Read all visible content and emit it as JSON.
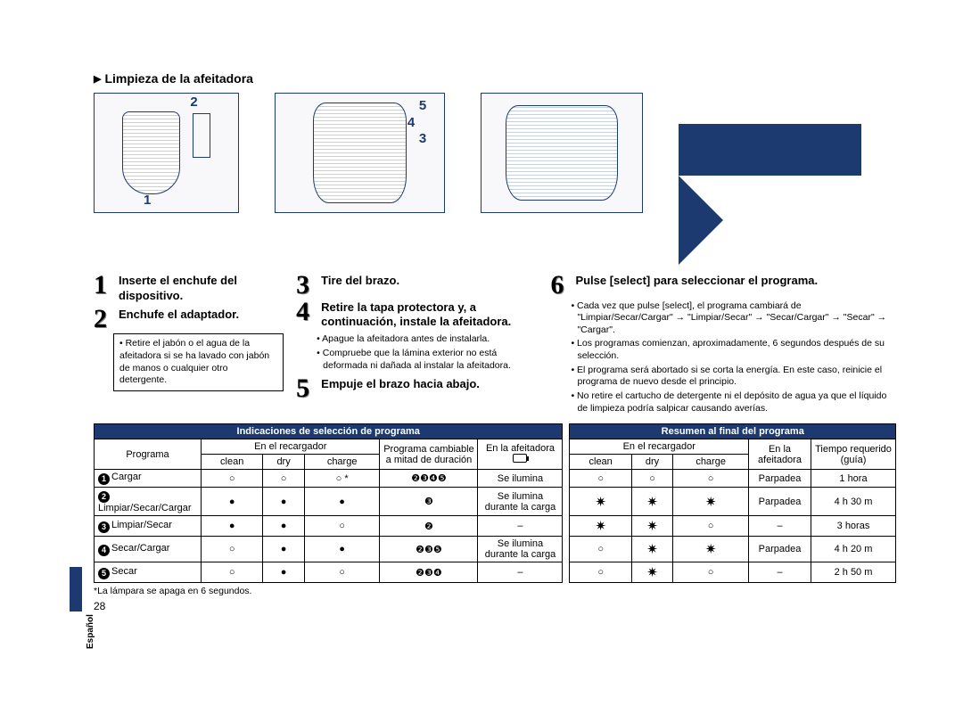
{
  "colors": {
    "brand": "#1c3a70",
    "text": "#000000",
    "bg": "#ffffff"
  },
  "sectionTitle": "Limpieza de la afeitadora",
  "diagramLabels": {
    "d1": [
      "1",
      "2"
    ],
    "d2": [
      "3",
      "4",
      "5"
    ]
  },
  "steps": {
    "s1": {
      "title": "Inserte el enchufe del dispositivo."
    },
    "s2": {
      "title": "Enchufe el adaptador.",
      "note": "• Retire el jabón o el agua de la afeitadora si se ha lavado con jabón de manos o cualquier otro detergente."
    },
    "s3": {
      "title": "Tire del brazo."
    },
    "s4": {
      "title": "Retire la tapa protectora y, a continuación, instale la afeitadora.",
      "bullets": [
        "Apague la afeitadora antes de instalarla.",
        "Compruebe que la lámina exterior no está deformada ni dañada al instalar la afeitadora."
      ]
    },
    "s5": {
      "title": "Empuje el brazo hacia abajo."
    },
    "s6": {
      "title": "Pulse [select] para seleccionar el programa.",
      "bullets": [
        "Cada vez que pulse [select], el programa cambiará de \"Limpiar/Secar/Cargar\" → \"Limpiar/Secar\" → \"Secar/Cargar\" → \"Secar\" → \"Cargar\".",
        "Los programas comienzan, aproximadamente, 6 segundos después de su selección.",
        "El programa será abortado si se corta la energía. En este caso, reinicie el programa de nuevo desde el principio.",
        "No retire el cartucho de detergente ni el depósito de agua ya que el líquido de limpieza podría salpicar causando averías."
      ]
    }
  },
  "table": {
    "header1_left": "Indicaciones de selección de programa",
    "header1_right": "Resumen al final del programa",
    "col_program": "Programa",
    "col_recharger": "En el recargador",
    "col_changeable": "Programa cambiable a mitad de duración",
    "col_shaver": "En la afeitadora",
    "col_time": "Tiempo requerido (guía)",
    "sub_clean": "clean",
    "sub_dry": "dry",
    "sub_charge": "charge",
    "rows": [
      {
        "n": "1",
        "name": "Cargar",
        "l_clean": "○",
        "l_dry": "○",
        "l_charge": "○ *",
        "change": "❷❸❹❺",
        "l_shaver": "Se ilumina",
        "r_clean": "○",
        "r_dry": "○",
        "r_charge": "○",
        "r_shaver": "Parpadea",
        "time": "1 hora"
      },
      {
        "n": "2",
        "name": "Limpiar/Secar/Cargar",
        "l_clean": "●",
        "l_dry": "●",
        "l_charge": "●",
        "change": "❸",
        "l_shaver": "Se ilumina durante la carga",
        "r_clean": "sun",
        "r_dry": "sun",
        "r_charge": "sun",
        "r_shaver": "Parpadea",
        "time": "4 h 30 m"
      },
      {
        "n": "3",
        "name": "Limpiar/Secar",
        "l_clean": "●",
        "l_dry": "●",
        "l_charge": "○",
        "change": "❷",
        "l_shaver": "–",
        "r_clean": "sun",
        "r_dry": "sun",
        "r_charge": "○",
        "r_shaver": "–",
        "time": "3 horas"
      },
      {
        "n": "4",
        "name": "Secar/Cargar",
        "l_clean": "○",
        "l_dry": "●",
        "l_charge": "●",
        "change": "❷❸❺",
        "l_shaver": "Se ilumina durante la carga",
        "r_clean": "○",
        "r_dry": "sun",
        "r_charge": "sun",
        "r_shaver": "Parpadea",
        "time": "4 h 20 m"
      },
      {
        "n": "5",
        "name": "Secar",
        "l_clean": "○",
        "l_dry": "●",
        "l_charge": "○",
        "change": "❷❸❹",
        "l_shaver": "–",
        "r_clean": "○",
        "r_dry": "sun",
        "r_charge": "○",
        "r_shaver": "–",
        "time": "2 h 50 m"
      }
    ],
    "footnote": "*La lámpara se apaga en 6 segundos."
  },
  "pageNumber": "28",
  "sideLabel": "Español"
}
